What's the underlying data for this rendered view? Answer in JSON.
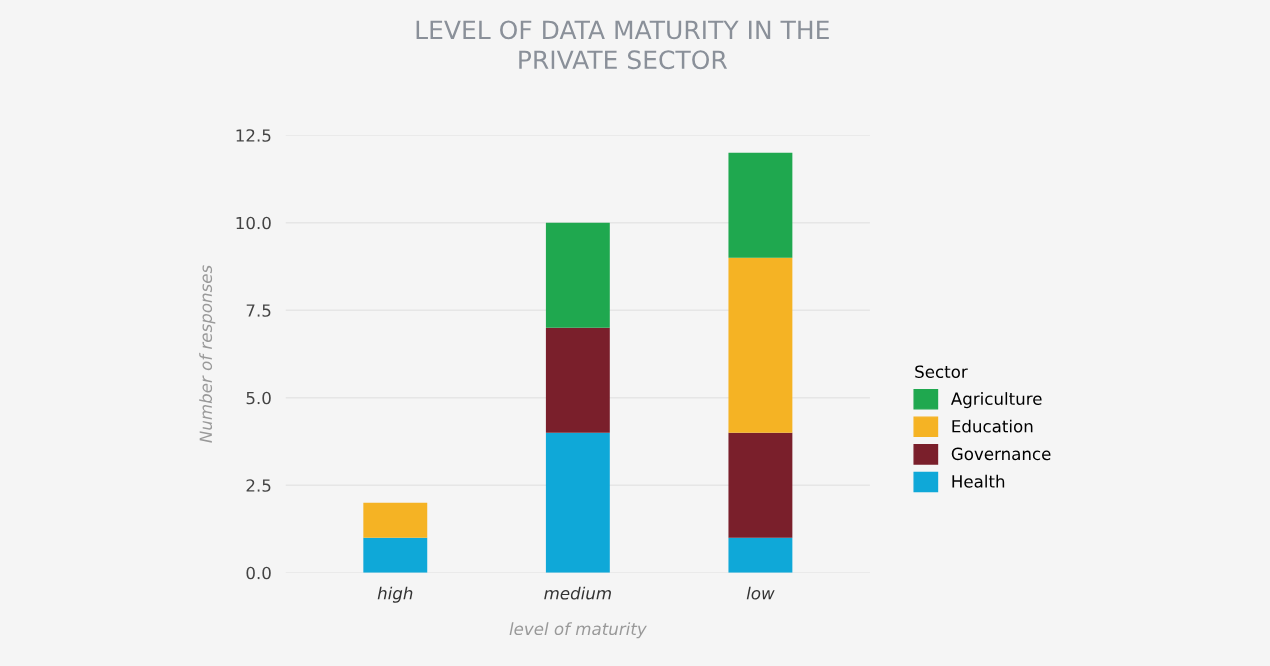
{
  "chart_data": {
    "type": "bar",
    "title": "LEVEL OF DATA MATURITY IN THE\nPRIVATE SECTOR",
    "xlabel": "level of maturity",
    "ylabel": "Number of responses",
    "legend_title": "Sector",
    "categories": [
      "high",
      "medium",
      "low"
    ],
    "series": [
      {
        "name": "Health",
        "color": "#0fa8d8",
        "values": [
          1,
          4,
          1
        ]
      },
      {
        "name": "Governance",
        "color": "#7a1f2b",
        "values": [
          0,
          3,
          3
        ]
      },
      {
        "name": "Education",
        "color": "#f5b324",
        "values": [
          1,
          0,
          5
        ]
      },
      {
        "name": "Agriculture",
        "color": "#1fa84f",
        "values": [
          0,
          3,
          3
        ]
      }
    ],
    "stacked": true,
    "ylim": [
      0,
      12.5
    ],
    "yticks": [
      {
        "value": 0,
        "label": "0.0"
      },
      {
        "value": 2.5,
        "label": "2.5"
      },
      {
        "value": 5,
        "label": "5.0"
      },
      {
        "value": 7.5,
        "label": "7.5"
      },
      {
        "value": 10,
        "label": "10.0"
      },
      {
        "value": 12.5,
        "label": "12.5"
      }
    ],
    "grid": "y",
    "legend": "right"
  }
}
